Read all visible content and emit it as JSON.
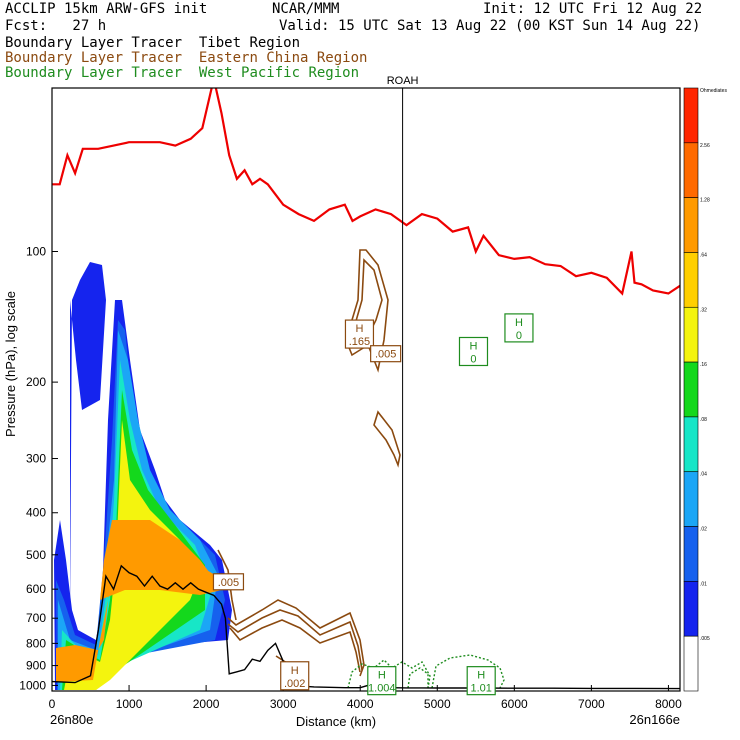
{
  "header": {
    "model": "ACCLIP 15km ARW-GFS init",
    "org": "NCAR/MMM",
    "init": "Init: 12 UTC Fri 12 Aug 22",
    "fcst": "Fcst:   27 h",
    "valid": "Valid: 15 UTC Sat 13 Aug 22 (00 KST Sun 14 Aug 22)",
    "tracers": [
      {
        "prefix": "Boundary Layer Tracer",
        "region": "Tibet Region",
        "color": "#000000"
      },
      {
        "prefix": "Boundary Layer Tracer",
        "region": "Eastern China Region",
        "color": "#8b4a10"
      },
      {
        "prefix": "Boundary Layer Tracer",
        "region": "West Pacific Region",
        "color": "#1e8c1e"
      }
    ]
  },
  "chart_data": {
    "type": "cross-section",
    "xlabel": "Distance (km)",
    "ylabel": "Pressure (hPa), log scale",
    "x_ticks": [
      0,
      1000,
      2000,
      3000,
      4000,
      5000,
      6000,
      7000,
      8000
    ],
    "xlim": [
      0,
      8150
    ],
    "y_ticks": [
      100,
      200,
      300,
      400,
      500,
      600,
      700,
      800,
      900,
      1000
    ],
    "ylim": [
      1030,
      42
    ],
    "y_scale": "log",
    "start_label": "26n80e",
    "end_label": "26n166e",
    "marker": {
      "label": "ROAH",
      "x": 4550
    },
    "colorbar": {
      "labels": [
        "Ohmediates",
        "2.56",
        "1.28",
        ".64",
        ".32",
        ".16",
        ".08",
        ".04",
        ".02",
        ".01",
        ".005"
      ],
      "colors": [
        "#ff2600",
        "#ff6a00",
        "#ff9a00",
        "#ffcf00",
        "#f4f40e",
        "#14d81c",
        "#17e6c7",
        "#1ba6f6",
        "#1661ee",
        "#1524ee",
        "#ffffff"
      ]
    },
    "tropopause": {
      "color": "#ee0000",
      "x": [
        0,
        100,
        200,
        300,
        400,
        600,
        800,
        1000,
        1200,
        1400,
        1600,
        1800,
        1950,
        2100,
        2200,
        2300,
        2400,
        2500,
        2600,
        2700,
        2800,
        3000,
        3200,
        3400,
        3600,
        3800,
        3900,
        4000,
        4200,
        4400,
        4600,
        4800,
        5000,
        5200,
        5400,
        5500,
        5600,
        5800,
        6000,
        6200,
        6400,
        6600,
        6800,
        7000,
        7200,
        7400,
        7520,
        7560,
        7650,
        7800,
        8000,
        8150
      ],
      "y": [
        70,
        70,
        60,
        66,
        58,
        58,
        57,
        56,
        56,
        56,
        57,
        55,
        52,
        40,
        48,
        60,
        68,
        65,
        70,
        68,
        70,
        78,
        82,
        85,
        80,
        78,
        85,
        83,
        80,
        82,
        87,
        82,
        84,
        90,
        88,
        100,
        92,
        102,
        104,
        103,
        107,
        108,
        114,
        112,
        115,
        125,
        100,
        118,
        119,
        123,
        125,
        120
      ]
    },
    "terrain": {
      "color": "#000000",
      "x": [
        0,
        300,
        500,
        600,
        700,
        800,
        900,
        1000,
        1100,
        1200,
        1300,
        1400,
        1500,
        1600,
        1700,
        1800,
        1900,
        2000,
        2100,
        2200,
        2250,
        2300,
        2400,
        2500,
        2600,
        2700,
        2800,
        2900,
        3000,
        3100,
        3200,
        3300,
        3400,
        3600,
        3800,
        4000,
        4100,
        4200,
        4400,
        4600,
        4800,
        5000,
        5500,
        6000,
        6500,
        7000,
        7500,
        8150
      ],
      "y": [
        980,
        985,
        950,
        750,
        560,
        600,
        530,
        550,
        560,
        590,
        560,
        590,
        600,
        580,
        600,
        580,
        600,
        610,
        620,
        650,
        700,
        940,
        930,
        920,
        870,
        880,
        830,
        800,
        880,
        1000,
        1005,
        1005,
        1008,
        1010,
        1012,
        1012,
        1000,
        1010,
        1012,
        1013,
        1013,
        1014,
        1014,
        1015,
        1015,
        1016,
        1016,
        1017
      ]
    },
    "highs": [
      {
        "label": "H",
        "value": ".165",
        "x": 3990,
        "y": 155,
        "color": "#8b4a10"
      },
      {
        "label": "H",
        "value": "0",
        "x": 6060,
        "y": 150,
        "color": "#1e8c1e"
      },
      {
        "label": "H",
        "value": "0",
        "x": 5470,
        "y": 170,
        "color": "#1e8c1e"
      },
      {
        "label": "H",
        "value": ".002",
        "x": 3150,
        "y": 950,
        "color": "#8b4a10"
      },
      {
        "label": "H",
        "value": "1.004",
        "x": 4280,
        "y": 975,
        "color": "#1e8c1e"
      },
      {
        "label": "H",
        "value": "1.01",
        "x": 5570,
        "y": 975,
        "color": "#1e8c1e"
      }
    ],
    "value_labels": [
      {
        "value": ".005",
        "x": 4330,
        "y": 172,
        "color": "#8b4a10"
      },
      {
        "value": ".005",
        "x": 2290,
        "y": 577,
        "color": "#8b4a10"
      }
    ]
  }
}
